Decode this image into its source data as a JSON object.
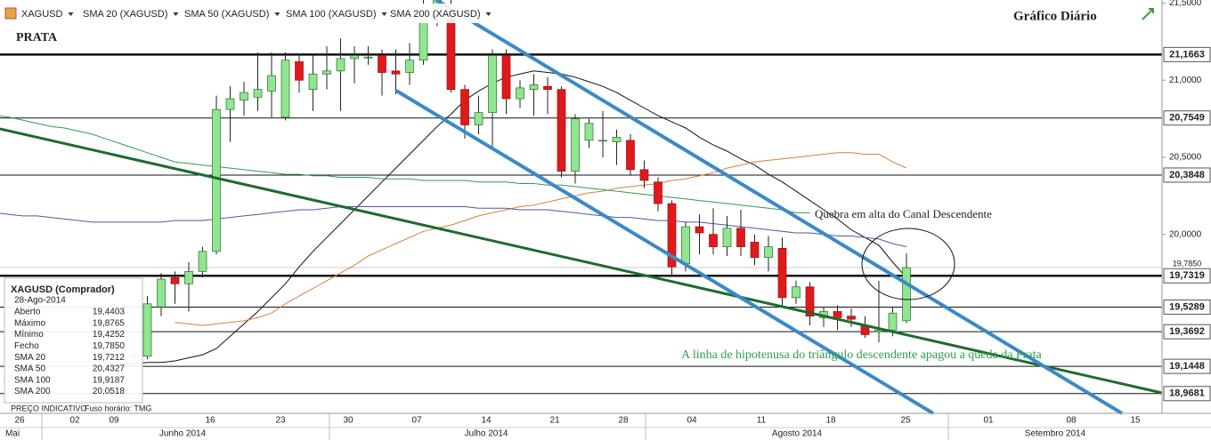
{
  "chart_data": {
    "type": "candlestick",
    "title": "Gráfico Diário",
    "subtitle": "PRATA",
    "annotations": [
      "Quebra em alta do Canal Descendente",
      "A linha de hipotenusa do triângulo descendente apagou a queda da Prata"
    ],
    "ylim": [
      18.84,
      21.52
    ],
    "yticks": [
      {
        "value": 21.5,
        "label": "21,5000"
      },
      {
        "value": 21.0,
        "label": "21,0000"
      },
      {
        "value": 20.5,
        "label": "20,5000"
      },
      {
        "value": 20.0,
        "label": "20,0000"
      }
    ],
    "levels_major": [
      {
        "value": 21.1663,
        "label": "21,1663"
      },
      {
        "value": 19.7319,
        "label": "19,7319"
      }
    ],
    "levels_minor": [
      {
        "value": 20.7549,
        "label": "20,7549"
      },
      {
        "value": 20.3848,
        "label": "20,3848"
      },
      {
        "value": 19.5289,
        "label": "19,5289"
      },
      {
        "value": 19.3692,
        "label": "19,3692"
      },
      {
        "value": 19.1448,
        "label": "19,1448"
      },
      {
        "value": 18.9681,
        "label": "18,9681"
      }
    ],
    "last_price": {
      "value": 19.785,
      "label": "19,7850"
    },
    "x_labels": [
      "26",
      "02",
      "09",
      "16",
      "23",
      "30",
      "07",
      "14",
      "21",
      "28",
      "04",
      "11",
      "18",
      "25",
      "01",
      "08",
      "15"
    ],
    "months": [
      "Mai",
      "Junho 2014",
      "Julho 2014",
      "Agosto 2014",
      "Setembro 2014"
    ],
    "footer": [
      "PREÇO INDICATIVO",
      "Fuso horário: TMG"
    ],
    "candles": {
      "name": "XAGUSD",
      "up_color": "#90e690",
      "down_color": "#e0191c",
      "open": [
        null,
        null,
        null,
        null,
        null,
        null,
        null,
        null,
        null,
        null,
        19.2,
        19.21,
        19.53,
        19.72,
        19.68,
        19.76,
        19.89,
        20.81,
        20.87,
        20.89,
        20.93,
        20.76,
        21.12,
        20.94,
        21.04,
        21.06,
        21.14,
        21.15,
        21.16,
        21.06,
        21.05,
        21.13,
        21.41,
        21.4,
        20.94,
        20.71,
        20.79,
        21.16,
        20.88,
        20.94,
        20.96,
        20.94,
        20.41,
        20.61,
        20.61,
        20.6,
        20.61,
        20.42,
        20.34,
        20.2,
        19.81,
        20.05,
        20.0,
        19.92,
        20.04,
        19.95,
        19.85,
        19.91,
        19.59,
        19.66,
        19.46,
        19.5,
        19.47,
        19.41,
        19.37,
        19.38,
        19.4403
      ],
      "high": [
        null,
        null,
        null,
        null,
        null,
        null,
        null,
        null,
        null,
        null,
        19.26,
        19.6,
        19.75,
        19.76,
        19.82,
        19.92,
        20.9,
        20.96,
        20.99,
        21.18,
        21.18,
        21.18,
        21.17,
        21.17,
        21.22,
        21.27,
        21.22,
        21.22,
        21.2,
        21.2,
        21.24,
        21.52,
        21.52,
        21.52,
        20.97,
        20.9,
        21.2,
        21.2,
        21.0,
        21.04,
        21.02,
        20.96,
        20.78,
        20.75,
        20.8,
        20.68,
        20.65,
        20.48,
        20.37,
        20.22,
        20.08,
        20.13,
        20.17,
        20.12,
        20.16,
        20.0,
        19.99,
        19.98,
        19.7,
        19.69,
        19.53,
        19.54,
        19.52,
        19.47,
        19.7,
        19.53,
        19.8765
      ],
      "low": [
        null,
        null,
        null,
        null,
        null,
        null,
        null,
        null,
        null,
        null,
        19.19,
        19.19,
        19.47,
        19.55,
        19.5,
        19.72,
        19.87,
        20.6,
        20.77,
        20.8,
        20.76,
        20.74,
        20.92,
        20.8,
        20.94,
        20.8,
        20.98,
        21.1,
        20.9,
        20.91,
        20.97,
        21.1,
        21.35,
        20.92,
        20.62,
        20.65,
        20.57,
        20.78,
        20.82,
        20.77,
        20.78,
        20.37,
        20.33,
        20.56,
        20.5,
        20.45,
        20.38,
        20.3,
        20.15,
        19.74,
        19.76,
        19.87,
        19.87,
        19.86,
        19.86,
        19.8,
        19.76,
        19.53,
        19.55,
        19.41,
        19.4,
        19.38,
        19.4,
        19.33,
        19.3,
        19.34,
        19.4252
      ],
      "close": [
        null,
        null,
        null,
        null,
        null,
        null,
        null,
        null,
        null,
        null,
        19.22,
        19.55,
        19.71,
        19.68,
        19.76,
        19.89,
        20.81,
        20.88,
        20.92,
        20.94,
        21.03,
        21.13,
        21.0,
        21.04,
        21.06,
        21.14,
        21.16,
        21.15,
        21.05,
        21.04,
        21.13,
        21.41,
        21.52,
        20.94,
        20.71,
        20.79,
        21.16,
        20.88,
        20.95,
        20.97,
        20.94,
        20.41,
        20.75,
        20.72,
        20.61,
        20.63,
        20.42,
        20.35,
        20.2,
        19.79,
        20.05,
        20.01,
        19.92,
        20.04,
        19.92,
        19.85,
        19.92,
        19.59,
        19.66,
        19.47,
        19.5,
        19.46,
        19.45,
        19.35,
        19.38,
        19.49,
        19.785
      ]
    },
    "series": [
      {
        "name": "SMA 20 (XAGUSD)",
        "color": "#111111",
        "values": [
          null,
          null,
          null,
          null,
          null,
          null,
          null,
          null,
          null,
          19.16,
          19.16,
          19.17,
          19.17,
          19.18,
          19.2,
          19.22,
          19.26,
          19.34,
          19.42,
          19.5,
          19.59,
          19.68,
          19.79,
          19.89,
          19.98,
          20.07,
          20.16,
          20.25,
          20.34,
          20.43,
          20.52,
          20.61,
          20.7,
          20.78,
          20.87,
          20.93,
          20.98,
          21.02,
          21.04,
          21.06,
          21.05,
          21.04,
          21.02,
          20.99,
          20.96,
          20.92,
          20.87,
          20.82,
          20.77,
          20.73,
          20.69,
          20.63,
          20.58,
          20.54,
          20.49,
          20.45,
          20.39,
          20.34,
          20.28,
          20.22,
          20.16,
          20.1,
          20.03,
          19.98,
          19.93,
          19.82,
          19.72
        ]
      },
      {
        "name": "SMA 50 (XAGUSD)",
        "color": "#e07b39",
        "values": [
          null,
          null,
          null,
          null,
          null,
          null,
          null,
          null,
          null,
          null,
          null,
          null,
          null,
          19.43,
          19.42,
          19.41,
          19.42,
          19.43,
          19.44,
          19.46,
          19.49,
          19.55,
          19.6,
          19.65,
          19.7,
          19.75,
          19.8,
          19.86,
          19.9,
          19.94,
          19.98,
          20.02,
          20.04,
          20.06,
          20.09,
          20.12,
          20.14,
          20.16,
          20.18,
          20.19,
          20.21,
          20.23,
          20.25,
          20.27,
          20.28,
          20.3,
          20.31,
          20.32,
          20.33,
          20.35,
          20.36,
          20.38,
          20.4,
          20.43,
          20.45,
          20.47,
          20.48,
          20.49,
          20.5,
          20.51,
          20.52,
          20.53,
          20.53,
          20.52,
          20.52,
          20.47,
          20.43
        ]
      },
      {
        "name": "SMA 100 (XAGUSD)",
        "color": "#4b5aa3",
        "values": [
          20.14,
          20.13,
          20.12,
          20.12,
          20.11,
          20.1,
          20.09,
          20.08,
          20.08,
          20.08,
          20.08,
          20.08,
          20.08,
          20.09,
          20.09,
          20.09,
          20.1,
          20.11,
          20.12,
          20.13,
          20.14,
          20.15,
          20.16,
          20.16,
          20.17,
          20.18,
          20.18,
          20.18,
          20.18,
          20.18,
          20.18,
          20.18,
          20.18,
          20.18,
          20.18,
          20.17,
          20.17,
          20.17,
          20.16,
          20.16,
          20.16,
          20.15,
          20.14,
          20.13,
          20.12,
          20.11,
          20.11,
          20.1,
          20.09,
          20.09,
          20.08,
          20.08,
          20.07,
          20.06,
          20.05,
          20.04,
          20.03,
          20.02,
          20.01,
          20.01,
          20.0,
          19.99,
          19.99,
          19.98,
          19.97,
          19.94,
          19.92
        ]
      },
      {
        "name": "SMA 200 (XAGUSD)",
        "color": "#2e9e4a",
        "values": [
          20.77,
          20.76,
          20.74,
          20.72,
          20.7,
          20.69,
          20.67,
          20.65,
          20.62,
          20.59,
          20.56,
          20.53,
          20.5,
          20.47,
          20.46,
          20.45,
          20.44,
          20.43,
          20.42,
          20.41,
          20.4,
          20.39,
          20.39,
          20.38,
          20.38,
          20.37,
          20.37,
          20.37,
          20.36,
          20.36,
          20.36,
          20.35,
          20.35,
          20.35,
          20.35,
          20.34,
          20.34,
          20.34,
          20.33,
          20.33,
          20.32,
          20.32,
          20.31,
          20.3,
          20.29,
          20.28,
          20.27,
          20.26,
          20.25,
          20.24,
          20.23,
          20.22,
          20.21,
          20.2,
          20.19,
          20.18,
          20.17,
          20.16,
          20.14,
          20.14,
          null,
          null,
          null,
          null,
          null,
          null,
          null
        ]
      }
    ],
    "tooltip": {
      "title": "XAGUSD (Comprador)",
      "date": "28-Ago-2014",
      "rows": [
        [
          "Aberto",
          "19,4403"
        ],
        [
          "Máximo",
          "19,8765"
        ],
        [
          "Mínimo",
          "19,4252"
        ],
        [
          "Fecho",
          "19,7850"
        ],
        [
          "SMA 20",
          "19,7212"
        ],
        [
          "SMA 50",
          "20,4327"
        ],
        [
          "SMA 100",
          "19,9187"
        ],
        [
          "SMA 200",
          "20,0518"
        ]
      ]
    }
  }
}
